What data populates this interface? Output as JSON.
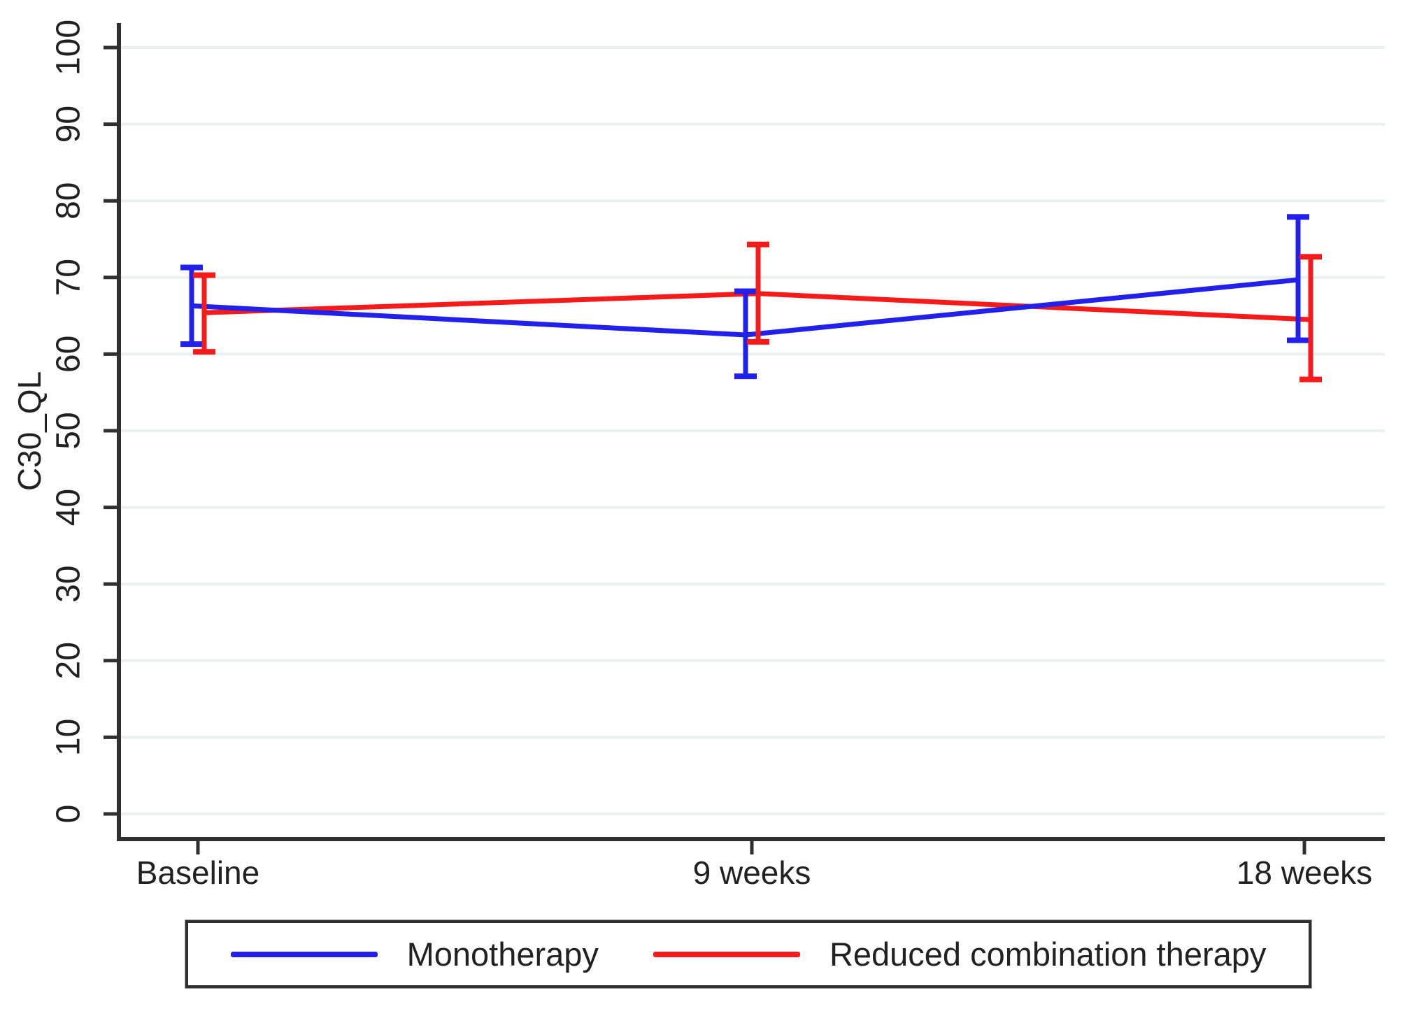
{
  "figure": {
    "background": "#ffffff",
    "text_color": "#212121",
    "axis_color": "#303030",
    "gridline_color": "#e8f1f0"
  },
  "chart_data": {
    "type": "line",
    "title": "",
    "xlabel": "",
    "ylabel": "C30_QL",
    "categories": [
      "Baseline",
      "9 weeks",
      "18 weeks"
    ],
    "ylim": [
      0,
      100
    ],
    "yticks": [
      0,
      10,
      20,
      30,
      40,
      50,
      60,
      70,
      80,
      90,
      100
    ],
    "grid": true,
    "error_bars": true,
    "legend_position": "bottom-box",
    "series": [
      {
        "name": "Monotherapy",
        "color": "#2121eb",
        "values": [
          66.3,
          62.5,
          69.7
        ],
        "ci_low": [
          61.3,
          57.1,
          61.8
        ],
        "ci_high": [
          71.3,
          68.2,
          77.9
        ]
      },
      {
        "name": "Reduced combination therapy",
        "color": "#f51b1b",
        "values": [
          65.4,
          67.9,
          64.5
        ],
        "ci_low": [
          60.3,
          61.6,
          56.7
        ],
        "ci_high": [
          70.3,
          74.3,
          72.7
        ]
      }
    ]
  }
}
